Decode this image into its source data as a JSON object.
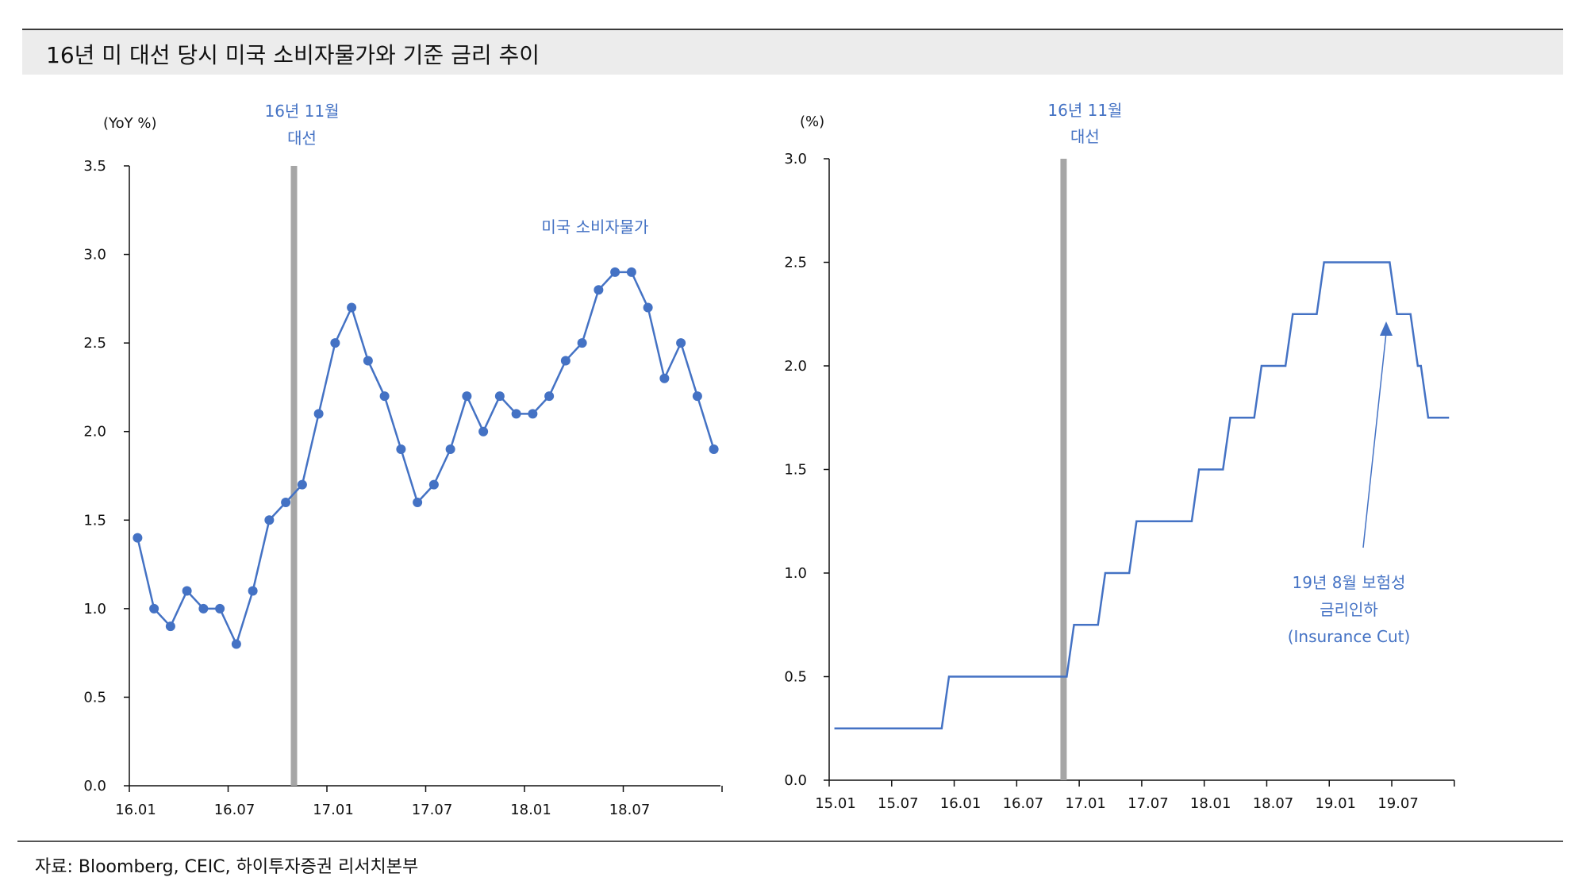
{
  "title": "16년 미 대선 당시 미국 소비자물가와 기준 금리 추이",
  "source": "자료: Bloomberg, CEIC, 하이투자증권 리서치본부",
  "colors": {
    "series": "#4472c4",
    "marker_bar": "#a6a6a6",
    "axis": "#111111"
  },
  "chart_data": [
    {
      "type": "line",
      "unit_label": "(YoY %)",
      "ylim": [
        0,
        3.5
      ],
      "yticks": [
        "0.0",
        "0.5",
        "1.0",
        "1.5",
        "2.0",
        "2.5",
        "3.0",
        "3.5"
      ],
      "xticks": [
        "16.01",
        "16.07",
        "17.01",
        "17.07",
        "18.01",
        "18.07"
      ],
      "x_start": "2016-01",
      "event": {
        "label_line1": "16년 11월",
        "label_line2": "대선",
        "index": 10
      },
      "series": [
        {
          "name": "미국 소비자물가",
          "values": [
            1.4,
            1.0,
            0.9,
            1.1,
            1.0,
            1.0,
            0.8,
            1.1,
            1.5,
            1.6,
            1.7,
            2.1,
            2.5,
            2.7,
            2.4,
            2.2,
            1.9,
            1.6,
            1.7,
            1.9,
            2.2,
            2.0,
            2.2,
            2.1,
            2.1,
            2.2,
            2.4,
            2.5,
            2.8,
            2.9,
            2.9,
            2.7,
            2.3,
            2.5,
            2.2,
            1.9
          ]
        }
      ]
    },
    {
      "type": "line",
      "step": true,
      "unit_label": "(%)",
      "ylim": [
        0,
        3.0
      ],
      "yticks": [
        "0.0",
        "0.5",
        "1.0",
        "1.5",
        "2.0",
        "2.5",
        "3.0"
      ],
      "xticks": [
        "15.01",
        "15.07",
        "16.01",
        "16.07",
        "17.01",
        "17.07",
        "18.01",
        "18.07",
        "19.01",
        "19.07"
      ],
      "x_start": "2015-01",
      "event": {
        "label_line1": "16년 11월",
        "label_line2": "대선",
        "index": 22.5
      },
      "annotation": {
        "line1": "19년 8월 보험성",
        "line2": "금리인하",
        "line3": "(Insurance Cut)"
      },
      "series": [
        {
          "name": "",
          "steps": [
            {
              "date": "2015-01",
              "value": 0.25
            },
            {
              "date": "2015-12",
              "value": 0.5
            },
            {
              "date": "2016-12",
              "value": 0.75
            },
            {
              "date": "2017-03",
              "value": 1.0
            },
            {
              "date": "2017-06",
              "value": 1.25
            },
            {
              "date": "2017-12",
              "value": 1.5
            },
            {
              "date": "2018-03",
              "value": 1.75
            },
            {
              "date": "2018-06",
              "value": 2.0
            },
            {
              "date": "2018-09",
              "value": 2.25
            },
            {
              "date": "2018-12",
              "value": 2.5
            },
            {
              "date": "2019-07",
              "value": 2.25
            },
            {
              "date": "2019-09",
              "value": 2.0
            },
            {
              "date": "2019-10",
              "value": 1.75
            },
            {
              "date": "2019-12",
              "value": 1.75
            }
          ]
        }
      ]
    }
  ]
}
